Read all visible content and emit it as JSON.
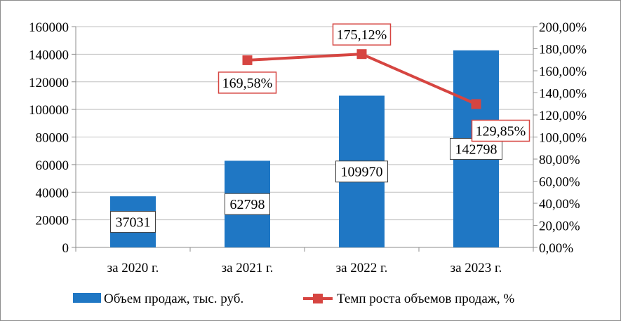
{
  "chart_data": {
    "type": "bar",
    "categories": [
      "за 2020 г.",
      "за 2021 г.",
      "за 2022 г.",
      "за 2023 г."
    ],
    "series": [
      {
        "name": "Объем продаж, тыс. руб.",
        "type": "bar",
        "axis": "left",
        "color": "#1f77c4",
        "values": [
          37031,
          62798,
          109970,
          142798
        ],
        "labels": [
          "37031",
          "62798",
          "109970",
          "142798"
        ]
      },
      {
        "name": "Темп роста объемов продаж, %",
        "type": "line",
        "axis": "right",
        "color": "#d64541",
        "values": [
          null,
          169.58,
          175.12,
          129.85
        ],
        "labels": [
          "",
          "169,58%",
          "175,12%",
          "129,85%"
        ]
      }
    ],
    "y_left": {
      "ylim": [
        0,
        160000
      ],
      "ticks": [
        0,
        20000,
        40000,
        60000,
        80000,
        100000,
        120000,
        140000,
        160000
      ],
      "tick_labels": [
        "0",
        "20000",
        "40000",
        "60000",
        "80000",
        "100000",
        "120000",
        "140000",
        "160000"
      ]
    },
    "y_right": {
      "ylim": [
        0,
        200
      ],
      "ticks": [
        0,
        20,
        40,
        60,
        80,
        100,
        120,
        140,
        160,
        180,
        200
      ],
      "tick_labels": [
        "0,00%",
        "20,00%",
        "40,00%",
        "60,00%",
        "80,00%",
        "100,00%",
        "120,00%",
        "140,00%",
        "160,00%",
        "180,00%",
        "200,00%"
      ]
    },
    "grid": true,
    "legend_position": "bottom"
  }
}
